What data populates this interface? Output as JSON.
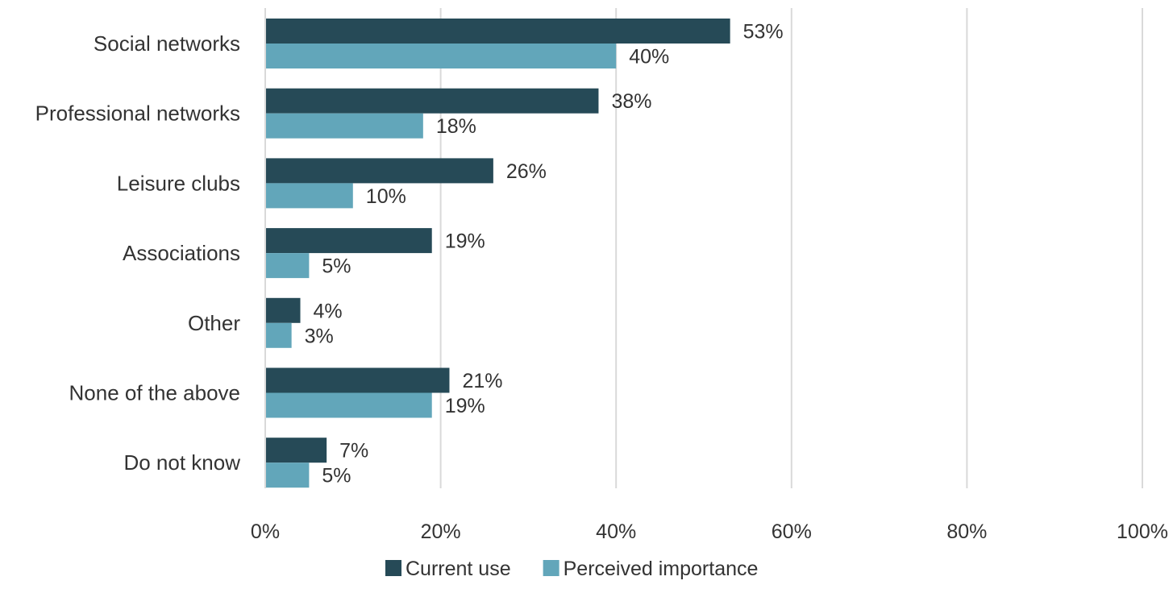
{
  "chart_data": {
    "type": "bar",
    "orientation": "horizontal",
    "categories": [
      "Social networks",
      "Professional networks",
      "Leisure clubs",
      "Associations",
      "Other",
      "None of the above",
      "Do not know"
    ],
    "series": [
      {
        "name": "Current use",
        "values": [
          53,
          38,
          26,
          19,
          4,
          21,
          7
        ],
        "color": "#264a57"
      },
      {
        "name": "Perceived importance",
        "values": [
          40,
          18,
          10,
          5,
          3,
          19,
          5
        ],
        "color": "#62a6ba"
      }
    ],
    "data_labels": {
      "Current use": [
        "53%",
        "38%",
        "26%",
        "19%",
        "4%",
        "21%",
        "7%"
      ],
      "Perceived importance": [
        "40%",
        "18%",
        "10%",
        "5%",
        "3%",
        "19%",
        "5%"
      ]
    },
    "x_ticks": [
      "0%",
      "20%",
      "40%",
      "60%",
      "80%",
      "100%"
    ],
    "xlim": [
      0,
      100
    ],
    "grid": true,
    "legend_position": "bottom",
    "title": "",
    "xlabel": "",
    "ylabel": ""
  }
}
